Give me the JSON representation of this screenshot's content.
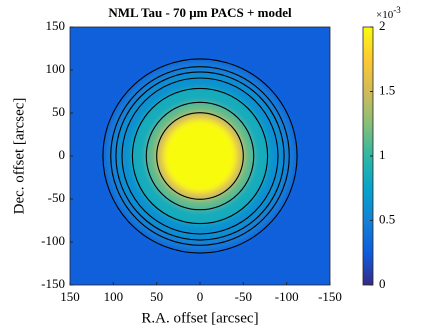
{
  "chart_data": {
    "type": "heatmap",
    "title": "NML Tau - 70 μm PACS + model",
    "xlabel": "R.A. offset [arcsec]",
    "ylabel": "Dec. offset [arcsec]",
    "xlim": [
      150,
      -150
    ],
    "xticks": [
      150,
      100,
      50,
      0,
      -50,
      -100,
      -150
    ],
    "ylim": [
      -150,
      150
    ],
    "yticks": [
      -150,
      -100,
      -50,
      0,
      50,
      100,
      150
    ],
    "background": 0.28,
    "rings": [
      110,
      98,
      80,
      62,
      50,
      42
    ],
    "values": [
      0.45,
      0.6,
      0.85,
      1.15,
      1.6,
      2
    ],
    "contours": [
      112,
      103,
      97,
      90,
      78,
      62,
      50
    ],
    "contour_color": "#000000",
    "clim": [
      0,
      2
    ],
    "cticks": [
      0,
      0.5,
      1,
      1.5,
      2
    ],
    "colorbar_multiplier": "×10",
    "colorbar_exponent": "-3",
    "colormap": [
      "#352a87",
      "#0f5cdd",
      "#1481d6",
      "#06a4ca",
      "#2eb7a4",
      "#87bf77",
      "#d1bb59",
      "#fec832",
      "#f9fb0e"
    ]
  }
}
